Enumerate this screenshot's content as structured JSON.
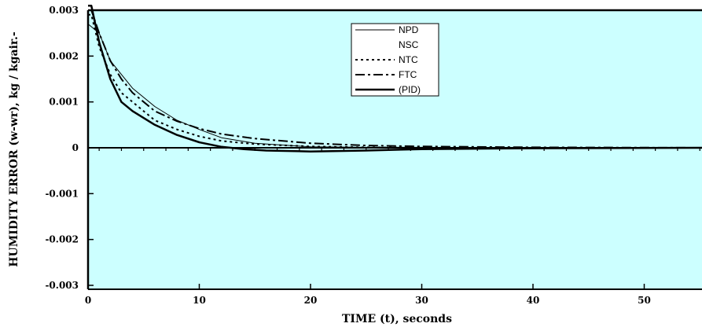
{
  "chart_data": {
    "type": "line",
    "xlabel": "TIME (t), seconds",
    "ylabel": "HUMIDITY ERROR (w-wr), kg / kgair.-",
    "xlim": [
      0,
      55.5
    ],
    "ylim": [
      -0.003,
      0.003
    ],
    "x_ticks": [
      0,
      10,
      20,
      30,
      40,
      50
    ],
    "x_tick_labels": [
      "0",
      "10",
      "20",
      "30",
      "40",
      "50"
    ],
    "y_ticks": [
      0.003,
      0.002,
      0.001,
      0,
      -0.001,
      -0.002,
      -0.003
    ],
    "y_tick_labels": [
      "0.003",
      "0.002",
      "0.001",
      "0",
      "-0.001",
      "-0.002",
      "-0.003"
    ],
    "grid": false,
    "legend_position": "top-center",
    "plot_background": "#ccffff",
    "series": [
      {
        "name": "NPD",
        "style": "thin-solid",
        "x": [
          0,
          1,
          2,
          3,
          4,
          6,
          8,
          10,
          12,
          15,
          20,
          25,
          30,
          40,
          55.5
        ],
        "y": [
          0.0027,
          0.0025,
          0.0019,
          0.0016,
          0.0013,
          0.0009,
          0.0006,
          0.0004,
          0.00022,
          0.0001,
          2e-05,
          1e-05,
          1e-05,
          0.0,
          0.0
        ]
      },
      {
        "name": "NSC",
        "style": "none",
        "x": [],
        "y": []
      },
      {
        "name": "NTC",
        "style": "dotted",
        "x": [
          0,
          0.3,
          1,
          2,
          3,
          4,
          6,
          8,
          10,
          12,
          15,
          18,
          20,
          25,
          30,
          40,
          55.5
        ],
        "y": [
          0.0029,
          0.0029,
          0.0022,
          0.0016,
          0.0012,
          0.001,
          0.0006,
          0.0004,
          0.00025,
          0.00015,
          8e-05,
          5e-05,
          3e-05,
          1e-05,
          0.0,
          0.0,
          0.0
        ]
      },
      {
        "name": "FTC",
        "style": "dash-dot",
        "x": [
          0,
          0.3,
          1,
          2,
          3,
          4,
          6,
          8,
          10,
          12,
          15,
          20,
          25,
          30,
          40,
          55.5
        ],
        "y": [
          0.003,
          0.003,
          0.0025,
          0.0019,
          0.0015,
          0.0012,
          0.0008,
          0.00058,
          0.00042,
          0.0003,
          0.0002,
          0.0001,
          5e-05,
          3e-05,
          1e-05,
          0.0
        ]
      },
      {
        "name": "(PID)",
        "style": "thick-solid",
        "x": [
          0,
          0.3,
          1,
          2,
          3,
          4,
          6,
          8,
          10,
          12,
          14,
          16,
          20,
          25,
          30,
          40,
          55.5
        ],
        "y": [
          0.0031,
          0.0031,
          0.0023,
          0.0015,
          0.001,
          0.0008,
          0.0005,
          0.00028,
          0.00012,
          2e-05,
          -3e-05,
          -6e-05,
          -8e-05,
          -6e-05,
          -3e-05,
          -1e-05,
          0.0
        ]
      }
    ]
  }
}
